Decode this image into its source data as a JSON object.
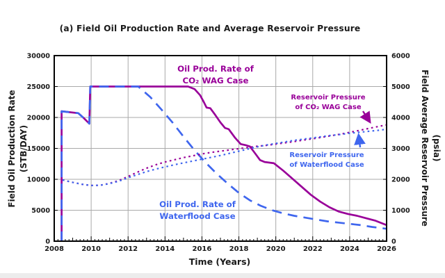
{
  "title": "(a) Field Oil Production Rate and Average Reservoir Pressure",
  "axes": {
    "x_title": "Time (Years)",
    "y_left_title_line1": "Field Oil Production Rate",
    "y_left_title_line2": "(STB/DAY)",
    "y_right_title_line1": "Field Average Reservoir Pressure",
    "y_right_title_line2": "(psia)"
  },
  "annotations": {
    "wag_rate_line1": "Oil Prod. Rate of",
    "wag_rate_line2": "CO₂ WAG Case",
    "wag_pressure_line1": "Reservoir Pressure",
    "wag_pressure_line2": "of CO₂ WAG Case",
    "wf_pressure_line1": "Reservoir Pressure",
    "wf_pressure_line2": "of Waterflood Case",
    "wf_rate_line1": "Oil Prod. Rate of",
    "wf_rate_line2": "Waterflood Case"
  },
  "colors": {
    "wag": "#990099",
    "waterflood": "#3f66ee",
    "grid": "#a9a9a9",
    "axis": "#000000",
    "background": "#ffffff"
  },
  "chart_data": {
    "type": "line",
    "title": "(a) Field Oil Production Rate and Average Reservoir Pressure",
    "xlabel": "Time (Years)",
    "x_range": [
      2008,
      2026
    ],
    "x_ticks": [
      2008,
      2010,
      2012,
      2014,
      2016,
      2018,
      2020,
      2022,
      2024,
      2026
    ],
    "x_minor_tick_step": 0.2,
    "grid": true,
    "legend_position": "inline-annotations",
    "y_left": {
      "label": "Field Oil Production Rate (STB/DAY)",
      "min": 0,
      "max": 30000,
      "ticks": [
        0,
        5000,
        10000,
        15000,
        20000,
        25000,
        30000
      ]
    },
    "y_right": {
      "label": "Field Average Reservoir Pressure (psia)",
      "min": 0,
      "max": 6000,
      "ticks": [
        0,
        1000,
        2000,
        3000,
        4000,
        5000,
        6000
      ]
    },
    "series": [
      {
        "id": "wag_oil_rate",
        "name": "Oil Prod. Rate of CO₂ WAG Case",
        "axis": "left",
        "units": "STB/DAY",
        "style": "solid",
        "color": "#990099",
        "width": 2.7,
        "points": [
          [
            2008.4,
            0
          ],
          [
            2008.4,
            21000
          ],
          [
            2009.3,
            20700
          ],
          [
            2009.6,
            19900
          ],
          [
            2009.9,
            19000
          ],
          [
            2009.95,
            25000
          ],
          [
            2015.25,
            25000
          ],
          [
            2015.6,
            24600
          ],
          [
            2015.9,
            23600
          ],
          [
            2016.1,
            22500
          ],
          [
            2016.25,
            21600
          ],
          [
            2016.45,
            21500
          ],
          [
            2016.7,
            20500
          ],
          [
            2017.0,
            19200
          ],
          [
            2017.25,
            18300
          ],
          [
            2017.45,
            18100
          ],
          [
            2017.8,
            16700
          ],
          [
            2018.1,
            15700
          ],
          [
            2018.4,
            15500
          ],
          [
            2018.6,
            15300
          ],
          [
            2018.9,
            14100
          ],
          [
            2019.15,
            13100
          ],
          [
            2019.4,
            12800
          ],
          [
            2019.9,
            12600
          ],
          [
            2020.4,
            11400
          ],
          [
            2020.9,
            10100
          ],
          [
            2021.4,
            8800
          ],
          [
            2021.9,
            7500
          ],
          [
            2022.4,
            6400
          ],
          [
            2022.9,
            5500
          ],
          [
            2023.4,
            4800
          ],
          [
            2023.9,
            4400
          ],
          [
            2024.4,
            4100
          ],
          [
            2024.9,
            3700
          ],
          [
            2025.4,
            3300
          ],
          [
            2026,
            2600
          ]
        ]
      },
      {
        "id": "waterflood_oil_rate",
        "name": "Oil Prod. Rate of Waterflood Case",
        "axis": "left",
        "units": "STB/DAY",
        "style": "dashed",
        "color": "#3f66ee",
        "width": 2.7,
        "dash": "14 9",
        "points": [
          [
            2008.4,
            0
          ],
          [
            2008.4,
            21000
          ],
          [
            2009.3,
            20700
          ],
          [
            2009.6,
            19900
          ],
          [
            2009.9,
            19000
          ],
          [
            2009.95,
            25000
          ],
          [
            2012.55,
            25000
          ],
          [
            2013.2,
            23300
          ],
          [
            2013.8,
            21300
          ],
          [
            2014.4,
            19200
          ],
          [
            2015.0,
            16900
          ],
          [
            2015.6,
            14700
          ],
          [
            2016.2,
            12700
          ],
          [
            2016.8,
            10900
          ],
          [
            2017.4,
            9300
          ],
          [
            2018.0,
            7800
          ],
          [
            2018.6,
            6600
          ],
          [
            2019.2,
            5700
          ],
          [
            2019.8,
            5000
          ],
          [
            2020.4,
            4500
          ],
          [
            2021.0,
            4100
          ],
          [
            2021.6,
            3800
          ],
          [
            2022.2,
            3500
          ],
          [
            2022.8,
            3200
          ],
          [
            2023.4,
            3000
          ],
          [
            2024.0,
            2800
          ],
          [
            2024.6,
            2600
          ],
          [
            2025.2,
            2300
          ],
          [
            2026,
            2000
          ]
        ]
      },
      {
        "id": "wag_reservoir_pressure",
        "name": "Reservoir Pressure of CO₂ WAG Case",
        "axis": "right",
        "units": "psia",
        "style": "dotted",
        "color": "#990099",
        "width": 2.2,
        "dash": "2.6 4.4",
        "points": [
          [
            2008.45,
            1980
          ],
          [
            2009,
            1900
          ],
          [
            2009.5,
            1840
          ],
          [
            2010,
            1800
          ],
          [
            2010.5,
            1810
          ],
          [
            2011,
            1870
          ],
          [
            2011.5,
            1960
          ],
          [
            2012,
            2090
          ],
          [
            2012.5,
            2230
          ],
          [
            2013,
            2360
          ],
          [
            2013.5,
            2470
          ],
          [
            2014,
            2560
          ],
          [
            2014.5,
            2630
          ],
          [
            2015,
            2700
          ],
          [
            2015.5,
            2760
          ],
          [
            2016,
            2820
          ],
          [
            2016.5,
            2870
          ],
          [
            2017,
            2910
          ],
          [
            2017.5,
            2950
          ],
          [
            2018,
            2990
          ],
          [
            2018.5,
            3030
          ],
          [
            2019,
            3070
          ],
          [
            2019.5,
            3100
          ],
          [
            2020,
            3140
          ],
          [
            2020.5,
            3180
          ],
          [
            2021,
            3220
          ],
          [
            2021.5,
            3270
          ],
          [
            2022,
            3310
          ],
          [
            2022.5,
            3360
          ],
          [
            2023,
            3410
          ],
          [
            2023.5,
            3460
          ],
          [
            2024,
            3520
          ],
          [
            2024.5,
            3580
          ],
          [
            2025,
            3640
          ],
          [
            2025.5,
            3700
          ],
          [
            2026,
            3760
          ]
        ]
      },
      {
        "id": "waterflood_reservoir_pressure",
        "name": "Reservoir Pressure of Waterflood Case",
        "axis": "right",
        "units": "psia",
        "style": "dotted",
        "color": "#3f66ee",
        "width": 2.2,
        "dash": "2.6 4.4",
        "points": [
          [
            2008.45,
            1980
          ],
          [
            2009,
            1900
          ],
          [
            2009.5,
            1840
          ],
          [
            2010,
            1800
          ],
          [
            2010.5,
            1810
          ],
          [
            2011,
            1860
          ],
          [
            2011.5,
            1940
          ],
          [
            2012,
            2050
          ],
          [
            2012.5,
            2150
          ],
          [
            2013,
            2250
          ],
          [
            2013.5,
            2330
          ],
          [
            2014,
            2400
          ],
          [
            2014.5,
            2470
          ],
          [
            2015,
            2530
          ],
          [
            2015.5,
            2590
          ],
          [
            2016,
            2650
          ],
          [
            2016.5,
            2710
          ],
          [
            2017,
            2770
          ],
          [
            2017.5,
            2840
          ],
          [
            2018,
            2910
          ],
          [
            2018.5,
            2980
          ],
          [
            2019,
            3050
          ],
          [
            2019.5,
            3110
          ],
          [
            2020,
            3160
          ],
          [
            2020.5,
            3210
          ],
          [
            2021,
            3260
          ],
          [
            2021.5,
            3300
          ],
          [
            2022,
            3340
          ],
          [
            2022.5,
            3380
          ],
          [
            2023,
            3420
          ],
          [
            2023.5,
            3450
          ],
          [
            2024,
            3490
          ],
          [
            2024.5,
            3520
          ],
          [
            2025,
            3550
          ],
          [
            2025.5,
            3580
          ],
          [
            2026,
            3620
          ]
        ]
      }
    ]
  }
}
